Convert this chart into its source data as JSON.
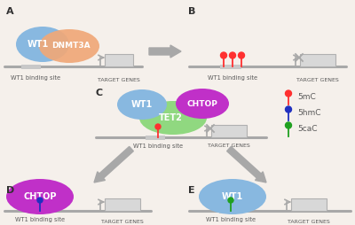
{
  "bg_color": "#f5f0eb",
  "wt1_color": "#88b8e0",
  "dnmt3a_color": "#f0a878",
  "chtop_color": "#c030c8",
  "tet2_color": "#90d880",
  "dna_color": "#a8a8a8",
  "highlight_color": "#c8c8c8",
  "box_color": "#d8d8d8",
  "box_edge_color": "#b0b0b0",
  "arrow_gray": "#a8a8a8",
  "text_color": "#585858",
  "label_color": "#303030",
  "mc5_color": "#ff3030",
  "hmc5_color": "#2030c0",
  "cac5_color": "#20a020",
  "white": "#ffffff",
  "legend_5mc": "5mC",
  "legend_5hmc": "5hmC",
  "legend_5cac": "5caC"
}
